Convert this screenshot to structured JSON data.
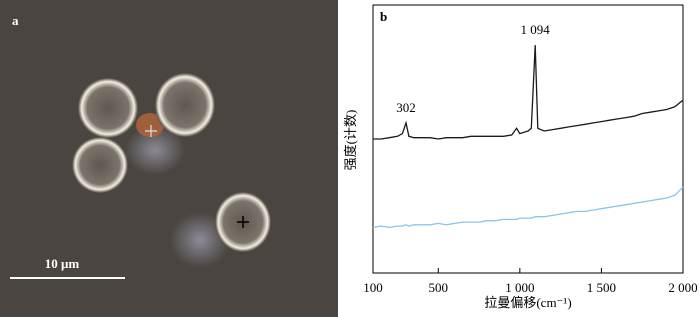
{
  "image_panel": {
    "label": "a",
    "scale_bar": "10 μm"
  },
  "chart_data": {
    "type": "line",
    "label": "b",
    "xlabel": "拉曼偏移(cm⁻¹)",
    "ylabel": "强度(计数)",
    "x": [
      100,
      150,
      200,
      250,
      280,
      302,
      320,
      350,
      400,
      450,
      500,
      550,
      600,
      650,
      700,
      750,
      800,
      850,
      900,
      950,
      980,
      1000,
      1050,
      1070,
      1094,
      1110,
      1150,
      1200,
      1250,
      1300,
      1350,
      1400,
      1450,
      1500,
      1550,
      1600,
      1650,
      1700,
      1750,
      1800,
      1850,
      1900,
      1950,
      2000
    ],
    "series": [
      {
        "color": "#1a1a1a",
        "values": [
          50,
          50,
          50.5,
          51,
          52,
          56,
          51,
          50.5,
          50.5,
          50.5,
          50,
          50.5,
          50.5,
          50.5,
          51,
          51,
          51,
          51,
          51,
          51.5,
          54,
          52,
          53,
          54,
          85,
          54,
          53,
          53.5,
          54,
          54.5,
          55,
          55.5,
          56,
          56.5,
          57,
          57.5,
          58,
          58.5,
          59.5,
          60,
          60.5,
          61,
          62,
          64.5
        ]
      },
      {
        "color": "#87c6e8",
        "values": [
          17,
          17.5,
          17,
          17.5,
          17.5,
          18,
          17.5,
          18,
          18,
          18,
          18.5,
          18,
          18.5,
          19,
          19,
          19,
          19.5,
          19.5,
          20,
          20,
          20,
          20.5,
          20.5,
          20.5,
          21,
          21,
          21,
          21.5,
          22,
          22.5,
          23,
          23,
          23.5,
          24,
          24.5,
          25,
          25.5,
          26,
          26.5,
          27,
          27.5,
          28,
          29,
          32
        ]
      }
    ],
    "annotations": [
      {
        "x": 302,
        "label": "302"
      },
      {
        "x": 1094,
        "label": "1 094"
      }
    ],
    "xlim": [
      100,
      2000
    ],
    "ylim": [
      0,
      100
    ],
    "xticks": [
      100,
      500,
      {
        "value": 1000,
        "label": "1 000"
      },
      {
        "value": 1500,
        "label": "1 500"
      },
      {
        "value": 2000,
        "label": "2 000"
      }
    ]
  }
}
